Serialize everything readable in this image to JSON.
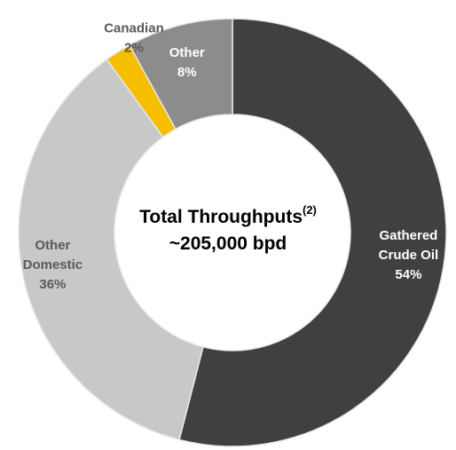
{
  "chart_data": {
    "type": "pie",
    "variant": "donut",
    "center_label": {
      "title": "Total Throughputs",
      "title_superscript": "(2)",
      "value": "~205,000 bpd"
    },
    "slices": [
      {
        "label": [
          "Gathered",
          "Crude Oil"
        ],
        "value": 54,
        "value_label": "54%",
        "color": "#404040",
        "label_color": "#ffffff"
      },
      {
        "label": [
          "Other",
          "Domestic"
        ],
        "value": 36,
        "value_label": "36%",
        "color": "#c8c8c8",
        "label_color": "#595959"
      },
      {
        "label": [
          "Canadian"
        ],
        "value": 2,
        "value_label": "2%",
        "color": "#f5be00",
        "label_color": "#595959"
      },
      {
        "label": [
          "Other"
        ],
        "value": 8,
        "value_label": "8%",
        "color": "#8c8c8c",
        "label_color": "#ffffff"
      }
    ],
    "start_angle_deg": 0,
    "direction": "clockwise",
    "legend": "none"
  }
}
